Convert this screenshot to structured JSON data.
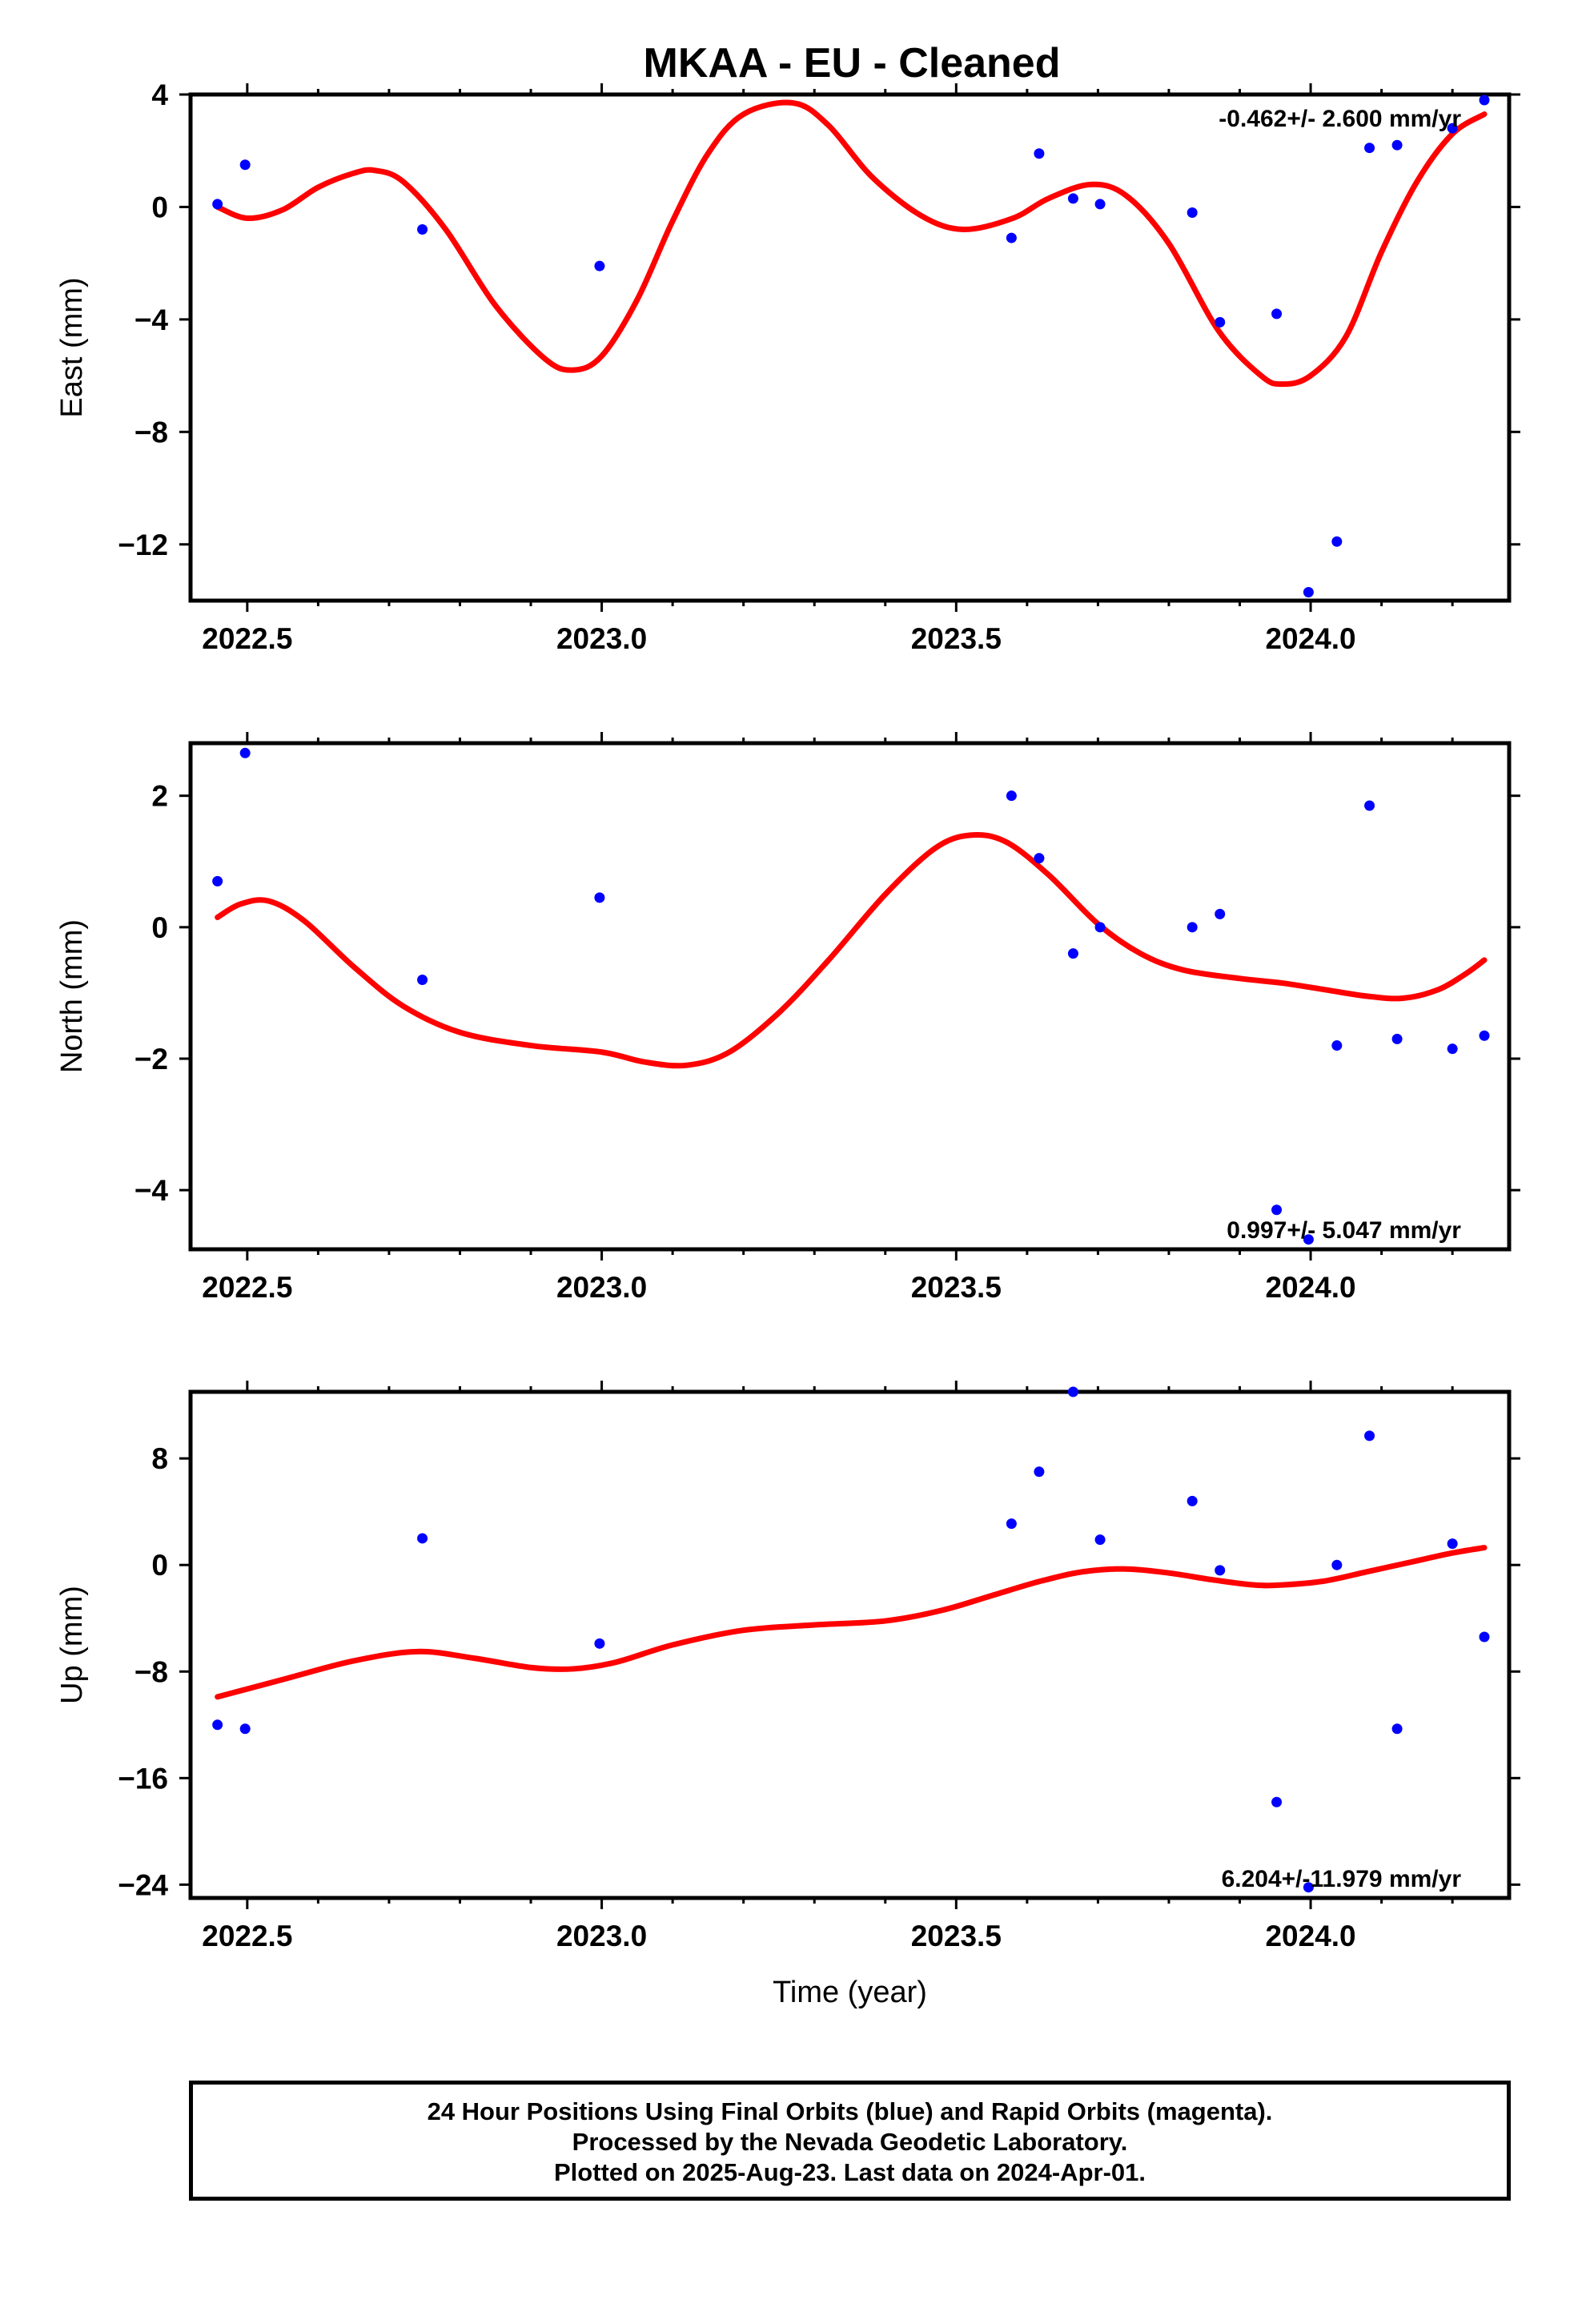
{
  "title": "MKAA  - EU - Cleaned",
  "footer": {
    "line1": "24 Hour Positions Using Final Orbits (blue) and Rapid Orbits (magenta).",
    "line2": "Processed by the Nevada Geodetic Laboratory.",
    "line3": "Plotted on 2025-Aug-23. Last data on 2024-Apr-01."
  },
  "colors": {
    "points": "#0000ff",
    "fit": "#ff0000",
    "frame": "#000000"
  },
  "chart_data": [
    {
      "type": "scatter",
      "ylabel": "East (mm)",
      "xlabel": "",
      "rate": "-0.462+/- 2.600 mm/yr",
      "xlim": [
        2022.42,
        2024.28
      ],
      "ylim": [
        -14,
        4
      ],
      "x_ticks": [
        "2022.5",
        "2023.0",
        "2023.5",
        "2024.0"
      ],
      "y_ticks": [
        "4",
        "0",
        "−4",
        "−8",
        "−12"
      ],
      "series": [
        {
          "type": "scatter",
          "x": [
            2022.458,
            2022.497,
            2022.747,
            2022.997,
            2023.578,
            2023.617,
            2023.665,
            2023.703,
            2023.833,
            2023.872,
            2023.952,
            2023.997,
            2024.037,
            2024.083,
            2024.122,
            2024.2,
            2024.245
          ],
          "y": [
            0.1,
            1.5,
            -0.8,
            -2.1,
            -1.1,
            1.9,
            0.3,
            0.1,
            -0.2,
            -4.1,
            -3.8,
            -13.7,
            -11.9,
            2.1,
            2.2,
            2.8,
            3.8
          ]
        },
        {
          "type": "line",
          "x": [
            2022.458,
            2022.5,
            2022.55,
            2022.6,
            2022.65,
            2022.68,
            2022.72,
            2022.78,
            2022.85,
            2022.92,
            2022.96,
            2023.0,
            2023.05,
            2023.1,
            2023.15,
            2023.2,
            2023.27,
            2023.32,
            2023.38,
            2023.45,
            2023.51,
            2023.58,
            2023.63,
            2023.69,
            2023.74,
            2023.8,
            2023.87,
            2023.93,
            2023.96,
            2024.0,
            2024.05,
            2024.1,
            2024.15,
            2024.2,
            2024.245
          ],
          "y": [
            0.0,
            -0.4,
            -0.1,
            0.7,
            1.2,
            1.3,
            0.9,
            -0.8,
            -3.5,
            -5.4,
            -5.8,
            -5.3,
            -3.3,
            -0.5,
            1.9,
            3.3,
            3.7,
            2.9,
            1.1,
            -0.3,
            -0.8,
            -0.4,
            0.3,
            0.8,
            0.4,
            -1.3,
            -4.4,
            -6.0,
            -6.3,
            -6.0,
            -4.6,
            -1.6,
            0.9,
            2.6,
            3.3
          ]
        }
      ]
    },
    {
      "type": "scatter",
      "ylabel": "North (mm)",
      "xlabel": "",
      "rate": "0.997+/- 5.047 mm/yr",
      "xlim": [
        2022.42,
        2024.28
      ],
      "ylim": [
        -4.9,
        2.8
      ],
      "x_ticks": [
        "2022.5",
        "2023.0",
        "2023.5",
        "2024.0"
      ],
      "y_ticks": [
        "2",
        "0",
        "−2",
        "−4"
      ],
      "series": [
        {
          "type": "scatter",
          "x": [
            2022.458,
            2022.497,
            2022.747,
            2022.997,
            2023.578,
            2023.617,
            2023.665,
            2023.703,
            2023.833,
            2023.872,
            2023.952,
            2023.997,
            2024.037,
            2024.083,
            2024.122,
            2024.2,
            2024.245
          ],
          "y": [
            0.7,
            2.65,
            -0.8,
            0.45,
            2.0,
            1.05,
            -0.4,
            0.0,
            0.0,
            0.2,
            -4.3,
            -4.75,
            -1.8,
            1.85,
            -1.7,
            -1.85,
            -1.65
          ]
        },
        {
          "type": "line",
          "x": [
            2022.458,
            2022.49,
            2022.53,
            2022.58,
            2022.65,
            2022.72,
            2022.8,
            2022.9,
            2023.0,
            2023.06,
            2023.12,
            2023.18,
            2023.25,
            2023.32,
            2023.4,
            2023.47,
            2023.52,
            2023.57,
            2023.63,
            2023.7,
            2023.76,
            2023.82,
            2023.9,
            2023.96,
            2024.02,
            2024.08,
            2024.13,
            2024.18,
            2024.22,
            2024.245
          ],
          "y": [
            0.15,
            0.35,
            0.4,
            0.1,
            -0.6,
            -1.2,
            -1.6,
            -1.8,
            -1.9,
            -2.05,
            -2.1,
            -1.9,
            -1.3,
            -0.5,
            0.5,
            1.2,
            1.4,
            1.3,
            0.8,
            0.05,
            -0.4,
            -0.65,
            -0.78,
            -0.85,
            -0.95,
            -1.05,
            -1.08,
            -0.95,
            -0.7,
            -0.5
          ]
        }
      ]
    },
    {
      "type": "scatter",
      "ylabel": "Up (mm)",
      "xlabel": "Time (year)",
      "rate": "6.204+/-11.979 mm/yr",
      "xlim": [
        2022.42,
        2024.28
      ],
      "ylim": [
        -25,
        13
      ],
      "x_ticks": [
        "2022.5",
        "2023.0",
        "2023.5",
        "2024.0"
      ],
      "y_ticks": [
        "8",
        "0",
        "−8",
        "−16",
        "−24"
      ],
      "series": [
        {
          "type": "scatter",
          "x": [
            2022.458,
            2022.497,
            2022.747,
            2022.997,
            2023.578,
            2023.617,
            2023.665,
            2023.703,
            2023.833,
            2023.872,
            2023.952,
            2023.997,
            2024.037,
            2024.083,
            2024.122,
            2024.2,
            2024.245
          ],
          "y": [
            -12.0,
            -12.3,
            2.0,
            -5.9,
            3.1,
            7.0,
            13.0,
            1.9,
            4.8,
            -0.4,
            -17.8,
            -24.2,
            0.0,
            9.7,
            -12.3,
            1.6,
            -5.4
          ]
        },
        {
          "type": "line",
          "x": [
            2022.458,
            2022.55,
            2022.65,
            2022.74,
            2022.82,
            2022.9,
            2022.96,
            2023.02,
            2023.1,
            2023.2,
            2023.3,
            2023.4,
            2023.48,
            2023.55,
            2023.62,
            2023.68,
            2023.74,
            2023.8,
            2023.86,
            2023.92,
            2023.96,
            2024.02,
            2024.08,
            2024.14,
            2024.2,
            2024.245
          ],
          "y": [
            -9.9,
            -8.6,
            -7.2,
            -6.5,
            -7.0,
            -7.7,
            -7.8,
            -7.3,
            -6.0,
            -4.9,
            -4.5,
            -4.2,
            -3.4,
            -2.3,
            -1.2,
            -0.5,
            -0.3,
            -0.6,
            -1.1,
            -1.5,
            -1.5,
            -1.2,
            -0.5,
            0.2,
            0.9,
            1.3
          ]
        }
      ]
    }
  ]
}
